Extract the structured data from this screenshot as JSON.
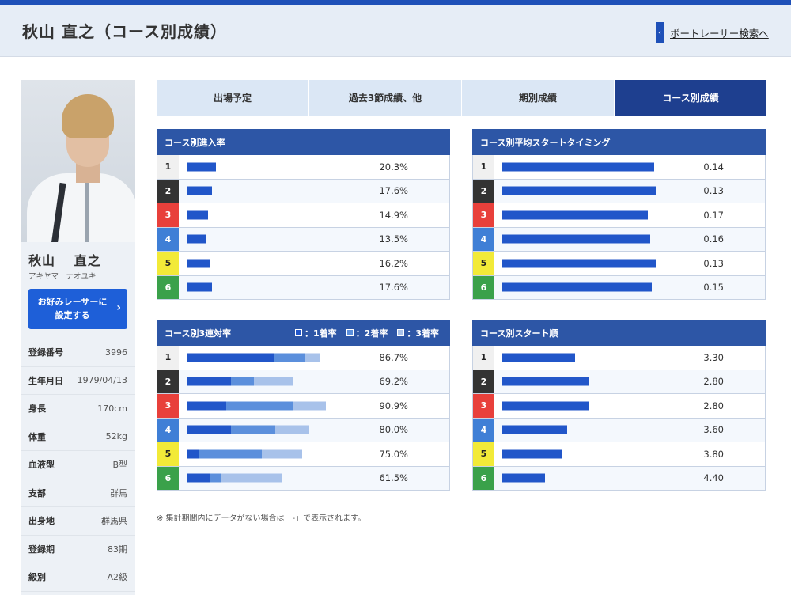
{
  "header": {
    "title": "秋山 直之（コース別成績）",
    "search_link": "ボートレーサー検索へ"
  },
  "profile": {
    "name": "秋山　 直之",
    "kana": "アキヤマ　ナオユキ",
    "fav_button_line1": "お好みレーサーに",
    "fav_button_line2": "設定する",
    "rows": [
      {
        "key": "登録番号",
        "value": "3996"
      },
      {
        "key": "生年月日",
        "value": "1979/04/13"
      },
      {
        "key": "身長",
        "value": "170cm"
      },
      {
        "key": "体重",
        "value": "52kg"
      },
      {
        "key": "血液型",
        "value": "B型"
      },
      {
        "key": "支部",
        "value": "群馬"
      },
      {
        "key": "出身地",
        "value": "群馬県"
      },
      {
        "key": "登録期",
        "value": "83期"
      },
      {
        "key": "級別",
        "value": "A2級"
      }
    ]
  },
  "tabs": [
    {
      "label": "出場予定",
      "active": false
    },
    {
      "label": "過去3節成績、他",
      "active": false
    },
    {
      "label": "期別成績",
      "active": false
    },
    {
      "label": "コース別成績",
      "active": true
    }
  ],
  "panels": {
    "entry_rate": {
      "title": "コース別進入率",
      "rows": [
        {
          "course": "1",
          "value": 20.3,
          "label": "20.3%"
        },
        {
          "course": "2",
          "value": 17.6,
          "label": "17.6%"
        },
        {
          "course": "3",
          "value": 14.9,
          "label": "14.9%"
        },
        {
          "course": "4",
          "value": 13.5,
          "label": "13.5%"
        },
        {
          "course": "5",
          "value": 16.2,
          "label": "16.2%"
        },
        {
          "course": "6",
          "value": 17.6,
          "label": "17.6%"
        }
      ]
    },
    "avg_start": {
      "title": "コース別平均スタートタイミング",
      "rows": [
        {
          "course": "1",
          "value": 0.14,
          "label": "0.14"
        },
        {
          "course": "2",
          "value": 0.13,
          "label": "0.13"
        },
        {
          "course": "3",
          "value": 0.17,
          "label": "0.17"
        },
        {
          "course": "4",
          "value": 0.16,
          "label": "0.16"
        },
        {
          "course": "5",
          "value": 0.13,
          "label": "0.13"
        },
        {
          "course": "6",
          "value": 0.15,
          "label": "0.15"
        }
      ]
    },
    "top3_rate": {
      "title": "コース別3連対率",
      "legend": [
        "：1着率",
        "：2着率",
        "：3着率"
      ],
      "rows": [
        {
          "course": "1",
          "first": 57.0,
          "second": 20.0,
          "third": 9.7,
          "label": "86.7%"
        },
        {
          "course": "2",
          "first": 29.0,
          "second": 15.0,
          "third": 25.2,
          "label": "69.2%"
        },
        {
          "course": "3",
          "first": 26.0,
          "second": 44.0,
          "third": 20.9,
          "label": "90.9%"
        },
        {
          "course": "4",
          "first": 29.0,
          "second": 29.0,
          "third": 22.0,
          "label": "80.0%"
        },
        {
          "course": "5",
          "first": 7.5,
          "second": 41.0,
          "third": 26.5,
          "label": "75.0%"
        },
        {
          "course": "6",
          "first": 15.0,
          "second": 7.5,
          "third": 39.0,
          "label": "61.5%"
        }
      ]
    },
    "start_order": {
      "title": "コース別スタート順",
      "rows": [
        {
          "course": "1",
          "value": 3.3,
          "label": "3.30"
        },
        {
          "course": "2",
          "value": 2.8,
          "label": "2.80"
        },
        {
          "course": "3",
          "value": 2.8,
          "label": "2.80"
        },
        {
          "course": "4",
          "value": 3.6,
          "label": "3.60"
        },
        {
          "course": "5",
          "value": 3.8,
          "label": "3.80"
        },
        {
          "course": "6",
          "value": 4.4,
          "label": "4.40"
        }
      ]
    }
  },
  "note": "※ 集計期間内にデータがない場合は「-」で表示されます。"
}
